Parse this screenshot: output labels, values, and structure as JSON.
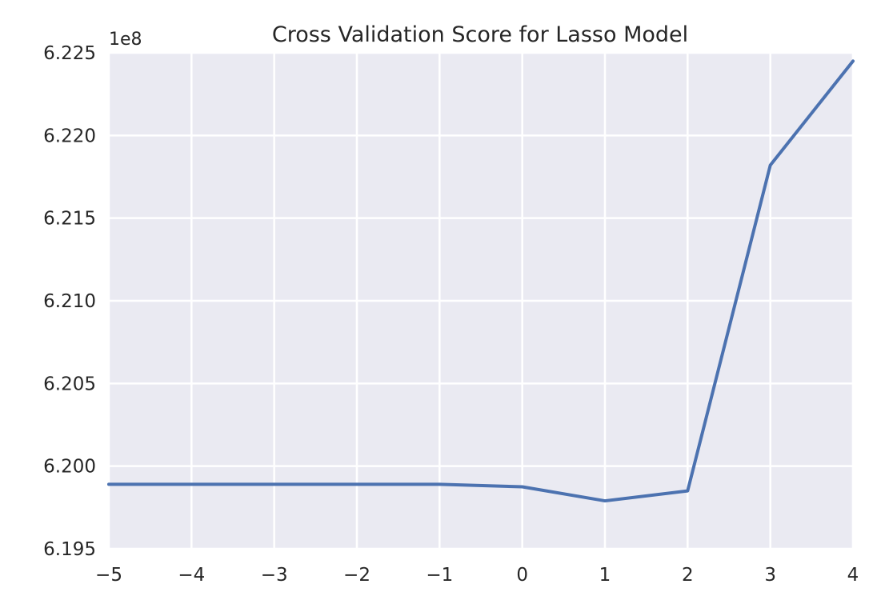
{
  "chart_data": {
    "type": "line",
    "title": "Cross Validation Score for Lasso Model",
    "xlabel": "",
    "ylabel": "",
    "y_offset_label": "1e8",
    "x": [
      -5,
      -4,
      -3,
      -2,
      -1,
      0,
      1,
      2,
      3,
      4
    ],
    "series": [
      {
        "values": [
          619890000,
          619890000,
          619890000,
          619890000,
          619890000,
          619875000,
          619790000,
          619850000,
          621820000,
          622450000
        ],
        "color": "#4c72b0"
      }
    ],
    "xlim": [
      -5,
      4
    ],
    "ylim": [
      619500000,
      622500000
    ],
    "x_ticks": [
      -5,
      -4,
      -3,
      -2,
      -1,
      0,
      1,
      2,
      3,
      4
    ],
    "x_tick_labels": [
      "−5",
      "−4",
      "−3",
      "−2",
      "−1",
      "0",
      "1",
      "2",
      "3",
      "4"
    ],
    "y_ticks": [
      619500000,
      620000000,
      620500000,
      621000000,
      621500000,
      622000000,
      622500000
    ],
    "y_tick_labels": [
      "6.195",
      "6.200",
      "6.205",
      "6.210",
      "6.215",
      "6.220",
      "6.225"
    ],
    "grid": true,
    "background": "#eaeaf2"
  }
}
